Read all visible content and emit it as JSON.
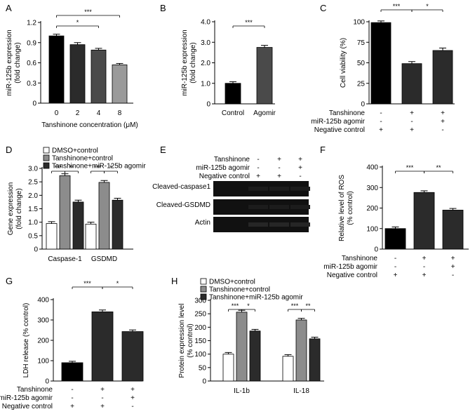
{
  "figure": {
    "colors": {
      "black": "#000000",
      "dark": "#2b2b2b",
      "mid": "#4a4a4a",
      "gray": "#8c8c8c",
      "light": "#9a9a9a",
      "white": "#ffffff"
    }
  },
  "chart_data": [
    {
      "panel": "A",
      "type": "bar",
      "ylabel": "miR-125b expression\n(fold change)",
      "xlabel": "Tanshinone concentration (μM)",
      "categories": [
        "0",
        "2",
        "4",
        "8"
      ],
      "values": [
        1.0,
        0.87,
        0.79,
        0.57
      ],
      "errors": [
        0.025,
        0.03,
        0.025,
        0.02
      ],
      "ylim": [
        0,
        1.2
      ],
      "yticks": [
        "0",
        "0.3",
        "0.6",
        "0.9",
        "1.2"
      ],
      "significance": [
        {
          "from": 0,
          "to": 3,
          "label": "***"
        },
        {
          "from": 0,
          "to": 2,
          "label": "*"
        }
      ]
    },
    {
      "panel": "B",
      "type": "bar",
      "ylabel": "miR-125b expression\n(fold change)",
      "categories": [
        "Control",
        "Agomir"
      ],
      "values": [
        1.0,
        2.75
      ],
      "errors": [
        0.08,
        0.1
      ],
      "ylim": [
        0,
        4.0
      ],
      "yticks": [
        "0",
        "1.0",
        "2.0",
        "3.0",
        "4.0"
      ],
      "significance": [
        {
          "from": 0,
          "to": 1,
          "label": "***"
        }
      ]
    },
    {
      "panel": "C",
      "type": "bar",
      "ylabel": "Cell viability (%)",
      "values": [
        99,
        49,
        65
      ],
      "errors": [
        2,
        2.5,
        3
      ],
      "ylim": [
        0,
        100
      ],
      "yticks": [
        "0",
        "25",
        "50",
        "75",
        "100"
      ],
      "treatment_rows": [
        {
          "label": "Tanshinone",
          "signs": [
            "-",
            "+",
            "+"
          ]
        },
        {
          "label": "miR-125b agomir",
          "signs": [
            "-",
            "-",
            "+"
          ]
        },
        {
          "label": "Negative control",
          "signs": [
            "+",
            "+",
            "-"
          ]
        }
      ],
      "significance": [
        {
          "from": 0,
          "to": 1,
          "label": "***"
        },
        {
          "from": 1,
          "to": 2,
          "label": "*"
        }
      ]
    },
    {
      "panel": "D",
      "type": "bar",
      "ylabel": "Gene expression\n(fold change)",
      "categories": [
        "Caspase-1",
        "GSDMD"
      ],
      "series": [
        {
          "name": "DMSO+control",
          "values": [
            0.95,
            0.93
          ],
          "errors": [
            0.07,
            0.07
          ]
        },
        {
          "name": "Tanshinone+control",
          "values": [
            2.73,
            2.48
          ],
          "errors": [
            0.07,
            0.07
          ]
        },
        {
          "name": "Tanshinone+miR-125b agomir",
          "values": [
            1.75,
            1.82
          ],
          "errors": [
            0.07,
            0.07
          ]
        }
      ],
      "ylim": [
        0,
        3.0
      ],
      "yticks": [
        "0",
        "0.5",
        "1.0",
        "1.5",
        "2.0",
        "2.5",
        "3.0"
      ],
      "significance": [
        {
          "group": 0,
          "from": 0,
          "to": 1,
          "label": "***"
        },
        {
          "group": 0,
          "from": 1,
          "to": 2,
          "label": "**"
        },
        {
          "group": 1,
          "from": 0,
          "to": 1,
          "label": "***"
        },
        {
          "group": 1,
          "from": 1,
          "to": 2,
          "label": "*"
        }
      ]
    },
    {
      "panel": "F",
      "type": "bar",
      "ylabel": "Relative level of ROS\n(% control)",
      "values": [
        100,
        276,
        190
      ],
      "errors": [
        8,
        8,
        8
      ],
      "ylim": [
        0,
        400
      ],
      "yticks": [
        "0",
        "100",
        "200",
        "300",
        "400"
      ],
      "treatment_rows": [
        {
          "label": "Tanshinone",
          "signs": [
            "-",
            "+",
            "+"
          ]
        },
        {
          "label": "miR-125b agomir",
          "signs": [
            "-",
            "-",
            "+"
          ]
        },
        {
          "label": "Negative control",
          "signs": [
            "+",
            "+",
            "-"
          ]
        }
      ],
      "significance": [
        {
          "from": 0,
          "to": 1,
          "label": "***"
        },
        {
          "from": 1,
          "to": 2,
          "label": "**"
        }
      ]
    },
    {
      "panel": "G",
      "type": "bar",
      "ylabel": "LDH release (% control)",
      "values": [
        90,
        340,
        243
      ],
      "errors": [
        7,
        9,
        8
      ],
      "ylim": [
        0,
        400
      ],
      "yticks": [
        "0",
        "100",
        "200",
        "300",
        "400"
      ],
      "treatment_rows": [
        {
          "label": "Tanshinone",
          "signs": [
            "-",
            "+",
            "+"
          ]
        },
        {
          "label": "miR-125b agomir",
          "signs": [
            "-",
            "-",
            "+"
          ]
        },
        {
          "label": "Negative control",
          "signs": [
            "+",
            "+",
            "-"
          ]
        }
      ],
      "significance": [
        {
          "from": 0,
          "to": 1,
          "label": "***"
        },
        {
          "from": 1,
          "to": 2,
          "label": "*"
        }
      ]
    },
    {
      "panel": "H",
      "type": "bar",
      "ylabel": "Protein expression level\n(% control)",
      "categories": [
        "IL-1b",
        "IL-18"
      ],
      "series": [
        {
          "name": "DMSO+control",
          "values": [
            100,
            92
          ],
          "errors": [
            6,
            6
          ]
        },
        {
          "name": "Tanshinone+control",
          "values": [
            256,
            227
          ],
          "errors": [
            7,
            6
          ]
        },
        {
          "name": "Tanshinone+miR-125b agomir",
          "values": [
            186,
            157
          ],
          "errors": [
            6,
            6
          ]
        }
      ],
      "ylim": [
        0,
        300
      ],
      "yticks": [
        "0",
        "50",
        "100",
        "150",
        "200",
        "250",
        "300"
      ],
      "significance": [
        {
          "group": 0,
          "from": 0,
          "to": 1,
          "label": "***"
        },
        {
          "group": 0,
          "from": 1,
          "to": 2,
          "label": "*"
        },
        {
          "group": 1,
          "from": 0,
          "to": 1,
          "label": "***"
        },
        {
          "group": 1,
          "from": 1,
          "to": 2,
          "label": "**"
        }
      ]
    }
  ],
  "blot": {
    "panel": "E",
    "treatment_rows": [
      {
        "label": "Tanshinone",
        "signs": [
          "-",
          "+",
          "+"
        ]
      },
      {
        "label": "miR-125b agomir",
        "signs": [
          "-",
          "-",
          "+"
        ]
      },
      {
        "label": "Negative control",
        "signs": [
          "+",
          "+",
          "-"
        ]
      }
    ],
    "bands": [
      "Cleaved-caspase1",
      "Cleaved-GSDMD",
      "Actin"
    ]
  }
}
